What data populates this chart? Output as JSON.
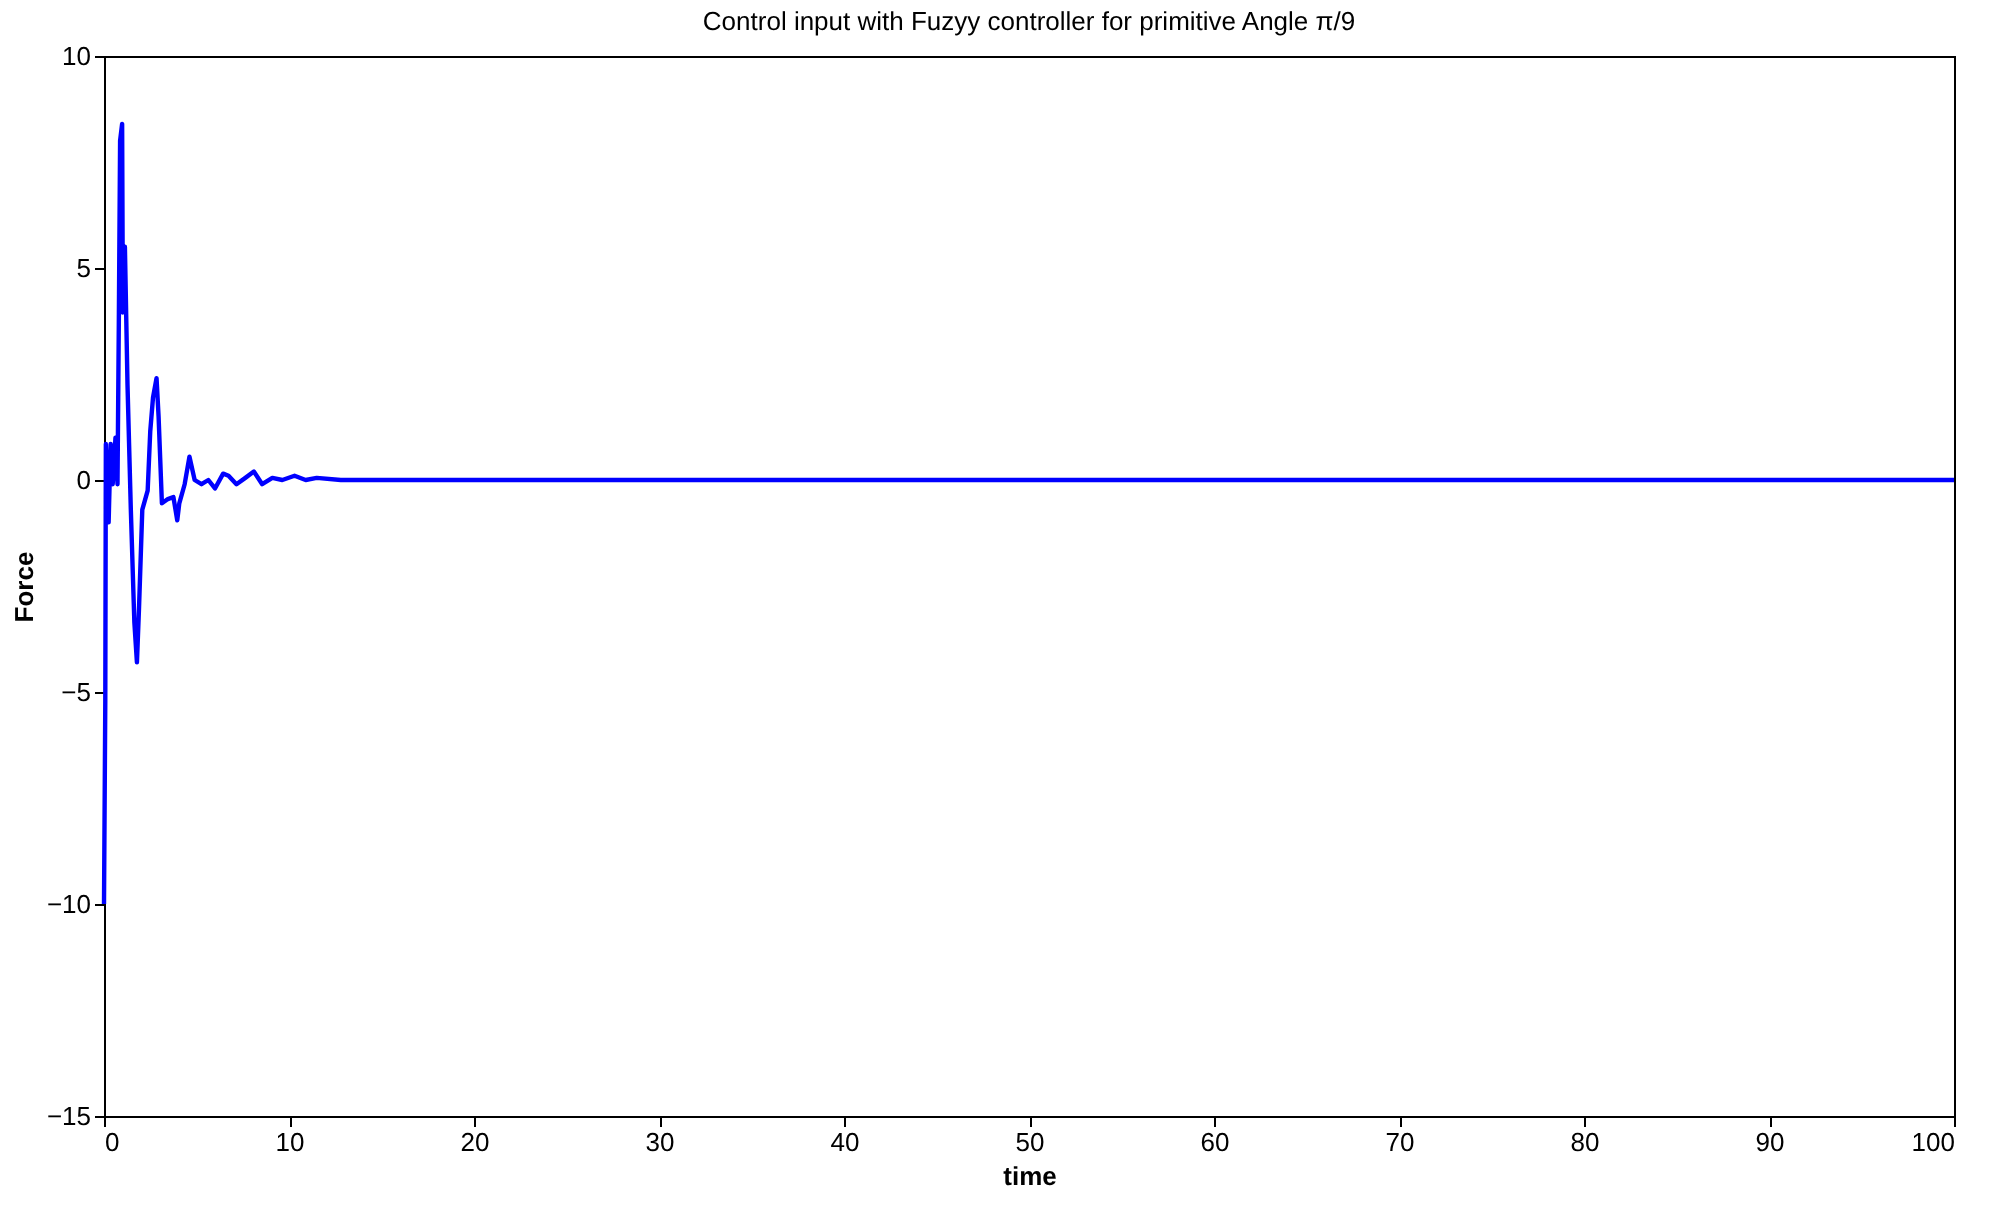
{
  "chart_data": {
    "type": "line",
    "title": "Control input with Fuzyy controller  for primitive Angle π/9",
    "xlabel": "time",
    "ylabel": "Force",
    "x": [
      0,
      0.07,
      0.1,
      0.25,
      0.36,
      0.47,
      0.62,
      0.73,
      0.8,
      0.87,
      0.98,
      1.02,
      1.13,
      1.27,
      1.45,
      1.64,
      1.78,
      1.89,
      2.07,
      2.36,
      2.5,
      2.65,
      2.84,
      2.95,
      3.13,
      3.45,
      3.75,
      3.96,
      4.07,
      4.36,
      4.62,
      4.9,
      5.27,
      5.64,
      6.0,
      6.44,
      6.73,
      7.16,
      7.64,
      8.1,
      8.55,
      9.1,
      9.64,
      10.3,
      10.9,
      11.5,
      12.8,
      100
    ],
    "series": [
      {
        "color": "#0000ff",
        "values": [
          -10,
          -5.2,
          0.85,
          -1.0,
          0.85,
          -0.1,
          1.0,
          -0.1,
          3.65,
          8.0,
          8.4,
          3.95,
          5.5,
          2.25,
          -0.7,
          -3.35,
          -4.3,
          -3.05,
          -0.7,
          -0.25,
          1.15,
          1.95,
          2.4,
          1.5,
          -0.55,
          -0.45,
          -0.4,
          -0.95,
          -0.55,
          -0.1,
          0.55,
          0,
          -0.1,
          0,
          -0.2,
          0.15,
          0.1,
          -0.1,
          0.05,
          0.2,
          -0.1,
          0.05,
          0,
          0.1,
          0,
          0.05,
          0,
          0
        ]
      }
    ],
    "xlim": [
      0,
      100
    ],
    "xticks": [
      0,
      10,
      20,
      30,
      40,
      50,
      60,
      70,
      80,
      90,
      100
    ],
    "ylim": [
      -15,
      10
    ],
    "yticks": [
      -15,
      -10,
      -5,
      0,
      5,
      10
    ],
    "grid": false,
    "legend": false,
    "marker": "none",
    "line_style": "solid"
  }
}
